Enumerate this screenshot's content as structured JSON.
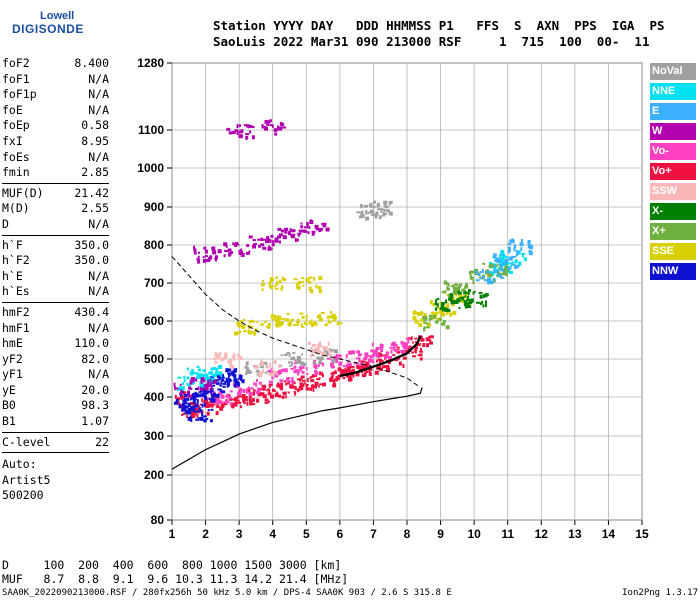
{
  "logo": {
    "line1": "Lowell",
    "line2": "DIGISONDE"
  },
  "header": {
    "line1": "Station YYYY DAY   DDD HHMMSS P1   FFS  S  AXN  PPS  IGA  PS",
    "line2": "SaoLuis 2022 Mar31 090 213000 RSF     1  715  100  00-  11"
  },
  "params": {
    "group1": [
      {
        "k": "foF2",
        "v": "8.400"
      },
      {
        "k": "foF1",
        "v": "N/A"
      },
      {
        "k": "foF1p",
        "v": "N/A"
      },
      {
        "k": "foE",
        "v": "N/A"
      },
      {
        "k": "foEp",
        "v": "0.58"
      },
      {
        "k": "fxI",
        "v": "8.95"
      },
      {
        "k": "foEs",
        "v": "N/A"
      },
      {
        "k": "fmin",
        "v": "2.85"
      }
    ],
    "group2": [
      {
        "k": "MUF(D)",
        "v": "21.42"
      },
      {
        "k": "M(D)",
        "v": "2.55"
      },
      {
        "k": "D",
        "v": "N/A"
      }
    ],
    "group3": [
      {
        "k": "h`F",
        "v": "350.0"
      },
      {
        "k": "h`F2",
        "v": "350.0"
      },
      {
        "k": "h`E",
        "v": "N/A"
      },
      {
        "k": "h`Es",
        "v": "N/A"
      }
    ],
    "group4": [
      {
        "k": "hmF2",
        "v": "430.4"
      },
      {
        "k": "hmF1",
        "v": "N/A"
      },
      {
        "k": "hmE",
        "v": "110.0"
      },
      {
        "k": "yF2",
        "v": "82.0"
      },
      {
        "k": "yF1",
        "v": "N/A"
      },
      {
        "k": "yE",
        "v": "20.0"
      },
      {
        "k": "B0",
        "v": "98.3"
      },
      {
        "k": "B1",
        "v": "1.07"
      }
    ],
    "group5": [
      {
        "k": "C-level",
        "v": "22"
      }
    ]
  },
  "auto": {
    "line1": "Auto:",
    "line2": "Artist5",
    "line3": "500200"
  },
  "dtable": {
    "line1": "D     100  200  400  600  800 1000 1500 3000 [km]",
    "line2": "MUF   8.7  8.8  9.1  9.6 10.3 11.3 14.2 21.4 [MHz]"
  },
  "footer": {
    "text": "SAA0K_2022090213000.RSF / 280fx256h 50 kHz 5.0 km / DPS-4 SAA0K 903 / 2.6 S 315.8 E",
    "version": "Ion2Png 1.3.17"
  },
  "legend": [
    {
      "label": "NoVal",
      "color": "#a0a0a0"
    },
    {
      "label": "NNE",
      "color": "#00e0f0"
    },
    {
      "label": "E",
      "color": "#3ab0ff"
    },
    {
      "label": "W",
      "color": "#b000b0"
    },
    {
      "label": "Vo-",
      "color": "#ff40c0"
    },
    {
      "label": "Vo+",
      "color": "#f01040"
    },
    {
      "label": "SSW",
      "color": "#f8b8b8"
    },
    {
      "label": "X-",
      "color": "#008000"
    },
    {
      "label": "X+",
      "color": "#70b040"
    },
    {
      "label": "SSE",
      "color": "#d8d000"
    },
    {
      "label": "NNW",
      "color": "#1010d0"
    }
  ],
  "chart_data": {
    "type": "scatter",
    "xlim": [
      1,
      15
    ],
    "ylim": [
      80,
      1280
    ],
    "x_ticks": [
      1,
      2,
      3,
      4,
      5,
      6,
      7,
      8,
      9,
      10,
      11,
      12,
      13,
      14,
      15
    ],
    "y_ticks": [
      80,
      200,
      300,
      400,
      500,
      600,
      700,
      800,
      900,
      1000,
      1100,
      1280
    ],
    "grid": true,
    "series": [
      {
        "name": "Vo+",
        "color": "#f01040",
        "points": [
          [
            1.2,
            400
          ],
          [
            1.6,
            370
          ],
          [
            2,
            380
          ],
          [
            2.5,
            390
          ],
          [
            3,
            395
          ],
          [
            3.5,
            405
          ],
          [
            4,
            420
          ],
          [
            4.5,
            430
          ],
          [
            5,
            440
          ],
          [
            5.5,
            450
          ],
          [
            6,
            460
          ],
          [
            6.5,
            470
          ],
          [
            7,
            485
          ],
          [
            7.5,
            500
          ],
          [
            8,
            520
          ],
          [
            8.3,
            545
          ]
        ]
      },
      {
        "name": "Vo-",
        "color": "#ff40c0",
        "points": [
          [
            2.4,
            400
          ],
          [
            3.2,
            430
          ],
          [
            4.2,
            460
          ],
          [
            5,
            480
          ],
          [
            5.8,
            495
          ],
          [
            6.6,
            505
          ],
          [
            7.2,
            525
          ],
          [
            7.8,
            540
          ]
        ]
      },
      {
        "name": "NNW",
        "color": "#1010d0",
        "points": [
          [
            1.3,
            380
          ],
          [
            1.6,
            400
          ],
          [
            1.8,
            360
          ],
          [
            2,
            410
          ],
          [
            2.2,
            430
          ],
          [
            2.5,
            460
          ],
          [
            2.8,
            450
          ]
        ]
      },
      {
        "name": "NNE",
        "color": "#00e0f0",
        "points": [
          [
            1.5,
            440
          ],
          [
            1.8,
            460
          ],
          [
            2.1,
            470
          ],
          [
            10.8,
            740
          ],
          [
            11.1,
            770
          ]
        ]
      },
      {
        "name": "W",
        "color": "#b000b0",
        "points": [
          [
            2,
            780
          ],
          [
            2.9,
            790
          ],
          [
            3.6,
            810
          ],
          [
            4.4,
            830
          ],
          [
            5.2,
            850
          ],
          [
            1.2,
            420
          ],
          [
            1.9,
            440
          ],
          [
            3,
            1100
          ],
          [
            4,
            1110
          ]
        ]
      },
      {
        "name": "SSE",
        "color": "#d8d000",
        "points": [
          [
            3.2,
            590
          ],
          [
            4,
            600
          ],
          [
            4.8,
            605
          ],
          [
            5.6,
            610
          ],
          [
            8.5,
            610
          ],
          [
            9,
            640
          ],
          [
            9.5,
            660
          ],
          [
            4,
            700
          ],
          [
            5,
            700
          ]
        ]
      },
      {
        "name": "X-",
        "color": "#008000",
        "points": [
          [
            9.2,
            650
          ],
          [
            9.6,
            670
          ],
          [
            10,
            660
          ]
        ]
      },
      {
        "name": "X+",
        "color": "#70b040",
        "points": [
          [
            8.8,
            600
          ],
          [
            9.4,
            690
          ],
          [
            10.2,
            720
          ],
          [
            10.6,
            740
          ]
        ]
      },
      {
        "name": "E",
        "color": "#3ab0ff",
        "points": [
          [
            10.4,
            720
          ],
          [
            10.9,
            760
          ],
          [
            11.3,
            800
          ]
        ]
      },
      {
        "name": "NoVal",
        "color": "#a0a0a0",
        "points": [
          [
            3.5,
            480
          ],
          [
            4.5,
            500
          ],
          [
            5.5,
            510
          ],
          [
            6.8,
            890
          ],
          [
            7.2,
            900
          ]
        ]
      },
      {
        "name": "SSW",
        "color": "#f8b8b8",
        "points": [
          [
            2.6,
            500
          ],
          [
            3.8,
            480
          ],
          [
            5.4,
            530
          ]
        ]
      }
    ],
    "profile_solid": [
      [
        1,
        215
      ],
      [
        1.5,
        240
      ],
      [
        2,
        265
      ],
      [
        2.5,
        285
      ],
      [
        3,
        305
      ],
      [
        3.5,
        320
      ],
      [
        4,
        335
      ],
      [
        4.5,
        345
      ],
      [
        5,
        355
      ],
      [
        5.5,
        365
      ],
      [
        6,
        372
      ],
      [
        6.5,
        380
      ],
      [
        7,
        388
      ],
      [
        7.5,
        395
      ],
      [
        8,
        402
      ],
      [
        8.4,
        410
      ],
      [
        8.45,
        425
      ]
    ],
    "profile_dashed": [
      [
        1,
        770
      ],
      [
        1.5,
        720
      ],
      [
        2,
        670
      ],
      [
        2.5,
        630
      ],
      [
        3,
        600
      ],
      [
        3.5,
        575
      ],
      [
        4,
        555
      ],
      [
        4.5,
        540
      ],
      [
        5,
        525
      ],
      [
        5.5,
        510
      ],
      [
        6,
        500
      ],
      [
        6.5,
        490
      ],
      [
        7,
        480
      ],
      [
        7.5,
        465
      ],
      [
        8,
        450
      ],
      [
        8.4,
        425
      ]
    ],
    "trace_black": [
      [
        6,
        455
      ],
      [
        6.5,
        465
      ],
      [
        7,
        480
      ],
      [
        7.5,
        495
      ],
      [
        8,
        515
      ],
      [
        8.3,
        540
      ],
      [
        8.4,
        560
      ]
    ]
  }
}
